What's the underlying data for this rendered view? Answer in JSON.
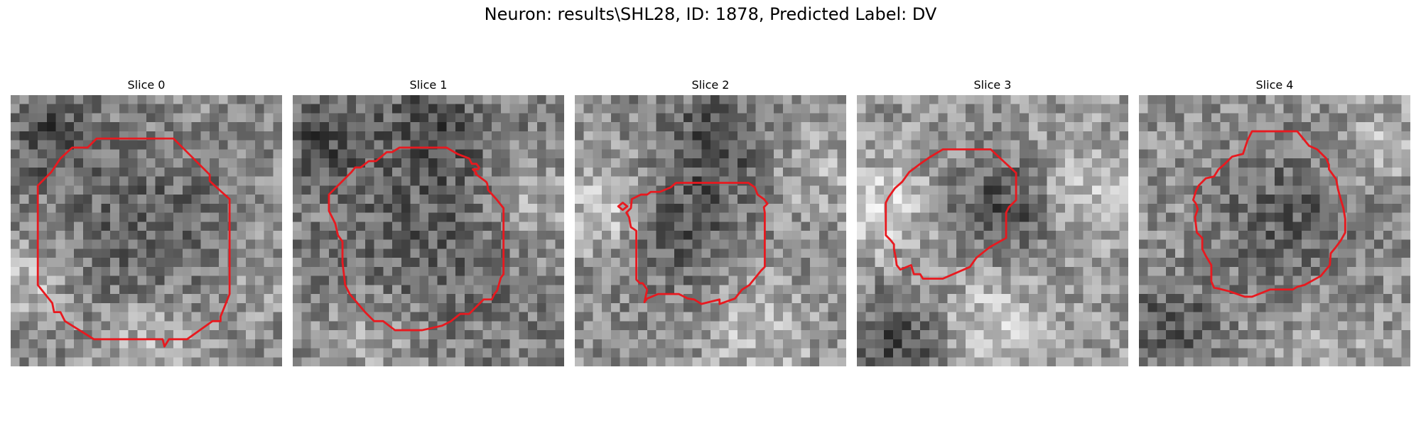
{
  "figure": {
    "title": "Neuron: results\\SHL28, ID: 1878, Predicted Label: DV",
    "contour_color": "#e8191f"
  },
  "panels": [
    {
      "title": "Slice 0"
    },
    {
      "title": "Slice 1"
    },
    {
      "title": "Slice 2"
    },
    {
      "title": "Slice 3"
    },
    {
      "title": "Slice 4"
    }
  ]
}
